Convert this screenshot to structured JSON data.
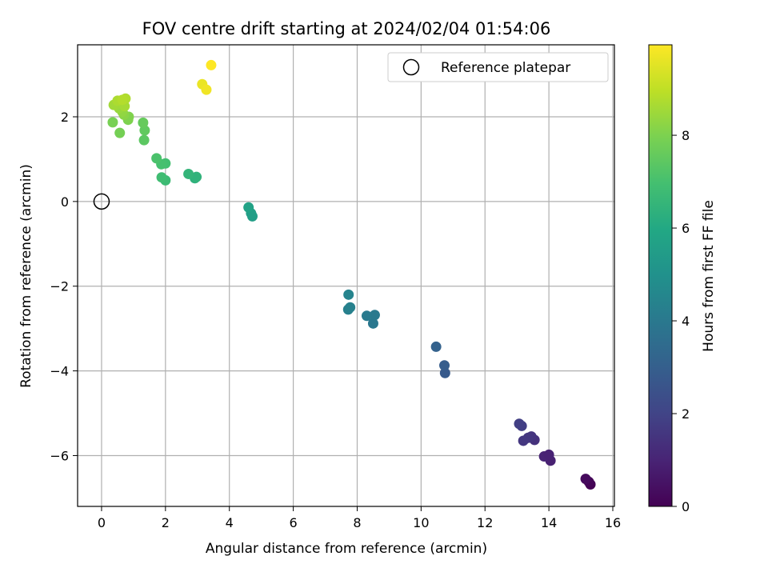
{
  "chart_data": {
    "type": "scatter",
    "title": "FOV centre drift starting at 2024/02/04 01:54:06",
    "xlabel": "Angular distance from reference (arcmin)",
    "ylabel": "Rotation from reference (arcmin)",
    "xlim": [
      -0.75,
      16.05
    ],
    "ylim": [
      -7.2,
      3.7
    ],
    "x_ticks": [
      0,
      2,
      4,
      6,
      8,
      10,
      12,
      14,
      16
    ],
    "y_ticks": [
      -6,
      -4,
      -2,
      0,
      2
    ],
    "grid": true,
    "legend": {
      "placement": "top-right",
      "entries": [
        "Reference platepar"
      ]
    },
    "reference_point": {
      "label": "Reference platepar",
      "x": 0,
      "y": 0
    },
    "colorbar": {
      "label": "Hours from first FF file",
      "colormap": "viridis",
      "range": [
        0,
        9.95
      ],
      "ticks": [
        0,
        2,
        4,
        6,
        8
      ]
    },
    "series": [
      {
        "points": [
          {
            "x": 15.3,
            "y": -6.68,
            "c": 0.0
          },
          {
            "x": 15.25,
            "y": -6.62,
            "c": 0.1
          },
          {
            "x": 15.15,
            "y": -6.55,
            "c": 0.25
          },
          {
            "x": 14.05,
            "y": -6.12,
            "c": 0.9
          },
          {
            "x": 13.85,
            "y": -6.02,
            "c": 1.0
          },
          {
            "x": 14.0,
            "y": -5.98,
            "c": 0.95
          },
          {
            "x": 13.55,
            "y": -5.63,
            "c": 1.4
          },
          {
            "x": 13.45,
            "y": -5.55,
            "c": 1.5
          },
          {
            "x": 13.35,
            "y": -5.58,
            "c": 1.55
          },
          {
            "x": 13.2,
            "y": -5.65,
            "c": 1.6
          },
          {
            "x": 13.15,
            "y": -5.3,
            "c": 1.8
          },
          {
            "x": 13.07,
            "y": -5.25,
            "c": 1.85
          },
          {
            "x": 10.75,
            "y": -4.05,
            "c": 2.8
          },
          {
            "x": 10.73,
            "y": -3.87,
            "c": 2.9
          },
          {
            "x": 10.47,
            "y": -3.43,
            "c": 3.1
          },
          {
            "x": 8.5,
            "y": -2.88,
            "c": 3.95
          },
          {
            "x": 8.55,
            "y": -2.68,
            "c": 4.0
          },
          {
            "x": 8.3,
            "y": -2.7,
            "c": 4.05
          },
          {
            "x": 7.72,
            "y": -2.55,
            "c": 4.3
          },
          {
            "x": 7.78,
            "y": -2.5,
            "c": 4.35
          },
          {
            "x": 7.73,
            "y": -2.2,
            "c": 4.45
          },
          {
            "x": 4.72,
            "y": -0.35,
            "c": 5.55
          },
          {
            "x": 4.68,
            "y": -0.28,
            "c": 5.6
          },
          {
            "x": 4.6,
            "y": -0.14,
            "c": 5.7
          },
          {
            "x": 2.92,
            "y": 0.55,
            "c": 6.35
          },
          {
            "x": 2.97,
            "y": 0.58,
            "c": 6.4
          },
          {
            "x": 2.72,
            "y": 0.65,
            "c": 6.5
          },
          {
            "x": 2.0,
            "y": 0.5,
            "c": 6.75
          },
          {
            "x": 1.88,
            "y": 0.57,
            "c": 6.85
          },
          {
            "x": 2.0,
            "y": 0.9,
            "c": 6.95
          },
          {
            "x": 1.87,
            "y": 0.88,
            "c": 7.0
          },
          {
            "x": 1.72,
            "y": 1.02,
            "c": 7.1
          },
          {
            "x": 1.33,
            "y": 1.45,
            "c": 7.4
          },
          {
            "x": 1.35,
            "y": 1.68,
            "c": 7.5
          },
          {
            "x": 1.3,
            "y": 1.86,
            "c": 7.6
          },
          {
            "x": 0.35,
            "y": 1.87,
            "c": 7.9
          },
          {
            "x": 0.57,
            "y": 1.62,
            "c": 7.85
          },
          {
            "x": 0.83,
            "y": 1.93,
            "c": 8.0
          },
          {
            "x": 0.85,
            "y": 2.0,
            "c": 8.05
          },
          {
            "x": 0.7,
            "y": 2.05,
            "c": 8.2
          },
          {
            "x": 0.65,
            "y": 2.12,
            "c": 8.3
          },
          {
            "x": 0.55,
            "y": 2.2,
            "c": 8.4
          },
          {
            "x": 0.45,
            "y": 2.28,
            "c": 8.5
          },
          {
            "x": 0.38,
            "y": 2.28,
            "c": 8.55
          },
          {
            "x": 0.72,
            "y": 2.25,
            "c": 8.6
          },
          {
            "x": 0.5,
            "y": 2.38,
            "c": 8.7
          },
          {
            "x": 0.75,
            "y": 2.43,
            "c": 8.75
          },
          {
            "x": 0.65,
            "y": 2.4,
            "c": 8.8
          },
          {
            "x": 3.15,
            "y": 2.77,
            "c": 9.65
          },
          {
            "x": 3.28,
            "y": 2.64,
            "c": 9.75
          },
          {
            "x": 3.43,
            "y": 3.22,
            "c": 9.95
          }
        ]
      }
    ]
  }
}
